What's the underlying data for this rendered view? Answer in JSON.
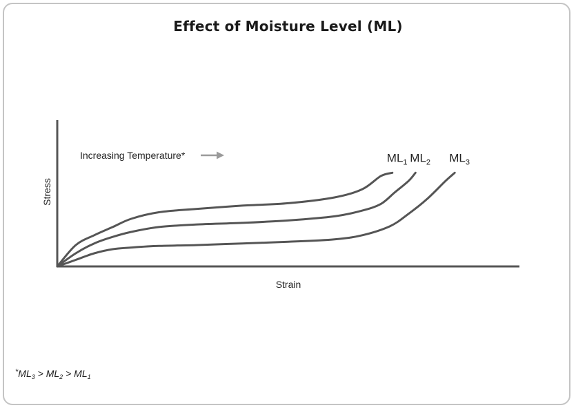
{
  "chart_data": {
    "type": "line",
    "title": "Effect of Moisture Level (ML)",
    "xlabel": "Strain",
    "ylabel": "Stress",
    "xlim": [
      0,
      100
    ],
    "ylim": [
      0,
      100
    ],
    "grid": false,
    "annotation": {
      "text": "Increasing Temperature*",
      "arrow": "right"
    },
    "series": [
      {
        "name": "ML1",
        "label_main": "ML",
        "label_sub": "1",
        "color": "#555555",
        "x": [
          0,
          4,
          8,
          12,
          16,
          22,
          30,
          40,
          50,
          60,
          66,
          70,
          72.5
        ],
        "y": [
          0,
          13,
          19,
          24,
          29,
          33,
          35,
          37,
          38.5,
          42,
          47,
          55,
          57
        ]
      },
      {
        "name": "ML2",
        "label_main": "ML",
        "label_sub": "2",
        "color": "#555555",
        "x": [
          0,
          4,
          8,
          12,
          16,
          22,
          30,
          40,
          50,
          60,
          66,
          70,
          73,
          76,
          77.5
        ],
        "y": [
          0,
          8,
          14,
          18,
          21,
          24,
          25.5,
          26.5,
          28,
          30.5,
          34,
          38,
          45,
          52,
          57
        ]
      },
      {
        "name": "ML3",
        "label_main": "ML",
        "label_sub": "3",
        "color": "#555555",
        "x": [
          0,
          4,
          8,
          12,
          16,
          22,
          30,
          40,
          50,
          60,
          66,
          72,
          76,
          80,
          84,
          86
        ],
        "y": [
          0,
          4,
          8,
          10.5,
          11.5,
          12.5,
          13,
          14,
          15,
          16.5,
          19,
          24.5,
          32,
          41,
          52,
          57
        ]
      }
    ]
  },
  "footnote": {
    "star": "*",
    "parts": [
      {
        "main": "ML",
        "sub": "3"
      },
      {
        "sep": " > "
      },
      {
        "main": "ML",
        "sub": "2"
      },
      {
        "sep": " > "
      },
      {
        "main": "ML",
        "sub": "1"
      }
    ]
  }
}
